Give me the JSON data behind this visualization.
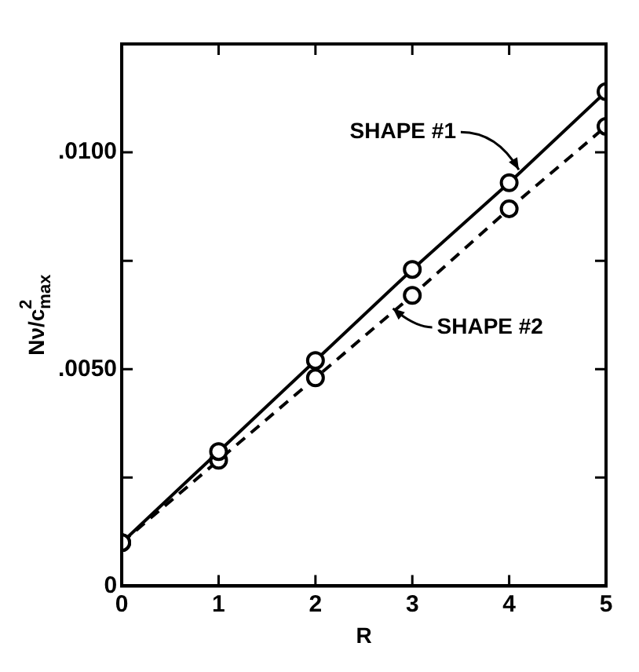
{
  "chart_data": {
    "type": "line",
    "xlabel": "R",
    "ylabel": "Nν/c$^{2}$$_{max}$",
    "x": [
      0,
      1,
      2,
      3,
      4,
      5
    ],
    "series": [
      {
        "color": "#000000",
        "line_style": "solid",
        "values": [
          0.001,
          0.0031,
          0.0052,
          0.0073,
          0.0093,
          0.0114
        ]
      },
      {
        "color": "#000000",
        "line_style": "dashed",
        "values": [
          0.001,
          0.0029,
          0.0048,
          0.0067,
          0.0087,
          0.0106
        ]
      }
    ],
    "xlim": [
      0,
      5
    ],
    "xticks": [
      0,
      1,
      2,
      3,
      4,
      5
    ],
    "ylim": [
      0,
      0.0125
    ],
    "yticks": [
      0,
      {
        "value": 0.0025,
        "label": null
      },
      {
        "value": 0.005,
        "label": ".0050"
      },
      {
        "value": 0.0075,
        "label": null
      },
      {
        "value": 0.01,
        "label": ".0100"
      }
    ],
    "marker": "circle",
    "grid": false,
    "legend": false,
    "annotations": [
      {
        "text": "SHAPE #1",
        "x": 4.1,
        "y": 0.0096
      },
      {
        "text": "SHAPE #2",
        "x": 2.8,
        "y": 0.0064
      }
    ]
  }
}
